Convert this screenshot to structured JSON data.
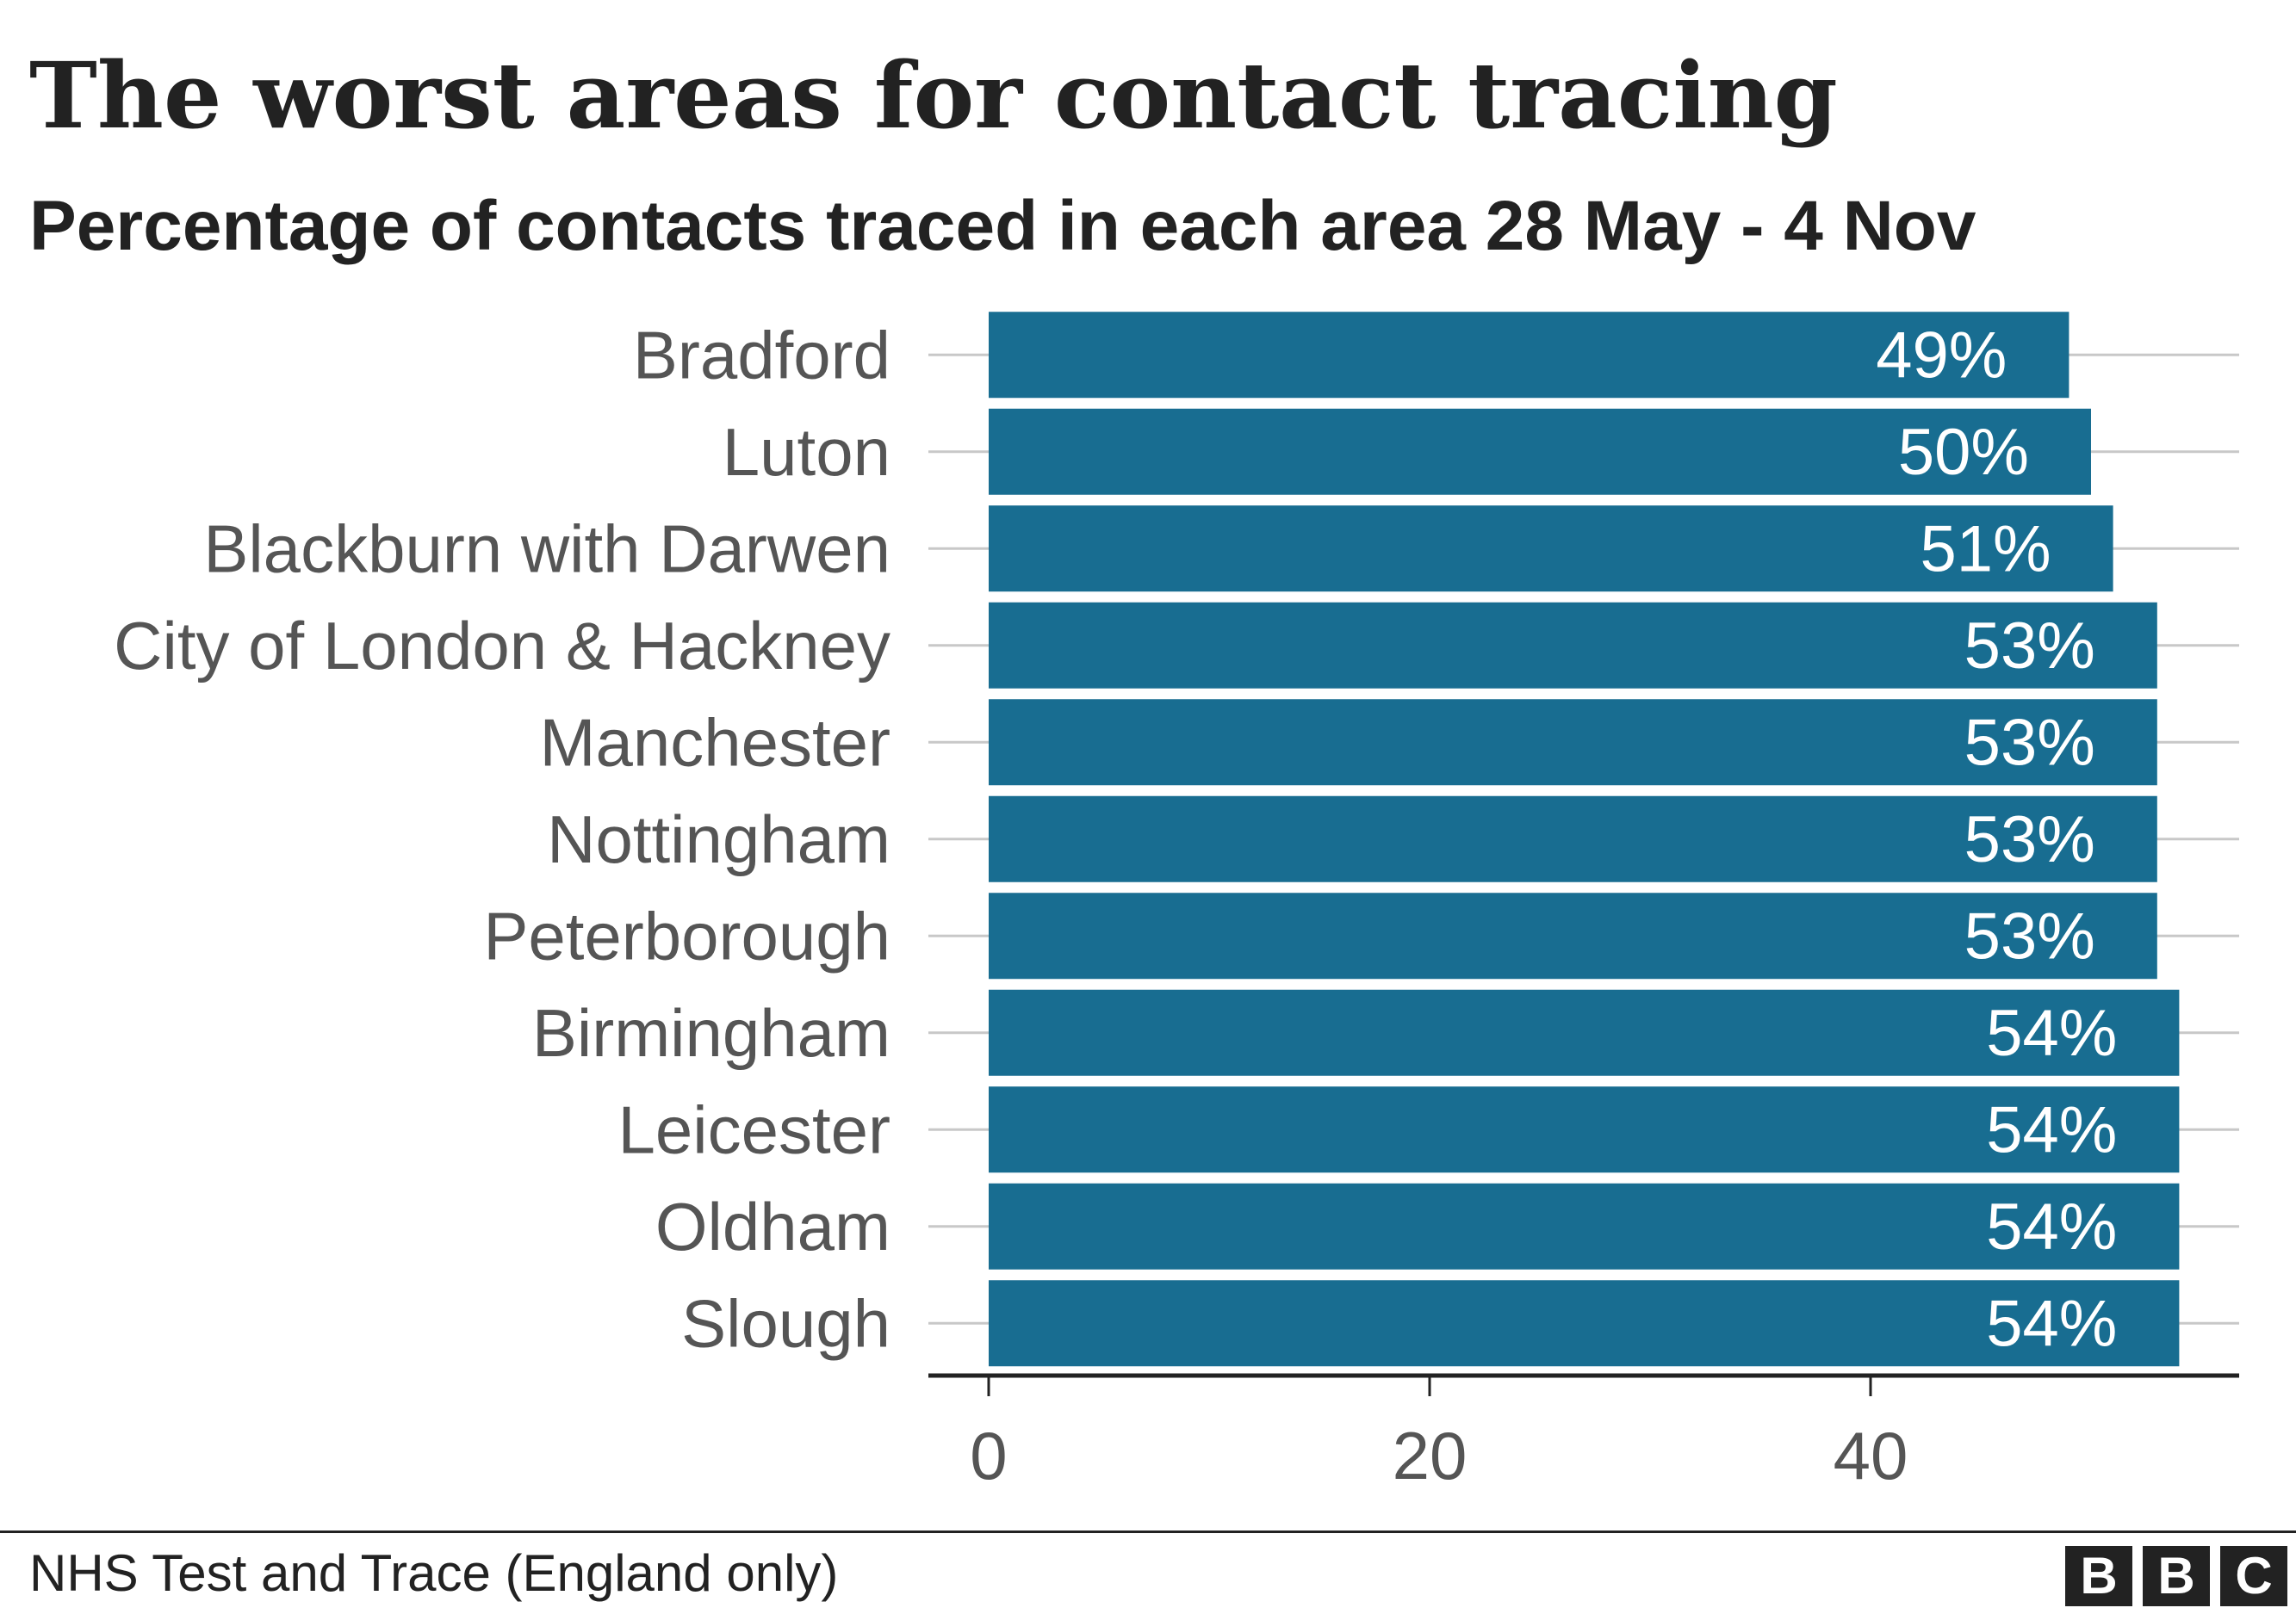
{
  "header": {
    "title": "The worst areas for contact tracing",
    "subtitle": "Percentage of contacts traced in each area 28 May - 4 Nov"
  },
  "footer": {
    "source": "NHS Test and Trace (England only)",
    "logo_letters": [
      "B",
      "B",
      "C"
    ]
  },
  "colors": {
    "bar": "#186d91",
    "bar_label": "#ffffff",
    "category_label": "#555555",
    "gridline": "#c8c8c8",
    "axis": "#222222",
    "tick_label": "#555555"
  },
  "chart_data": {
    "type": "bar",
    "orientation": "horizontal",
    "categories": [
      "Bradford",
      "Luton",
      "Blackburn with Darwen",
      "City of London & Hackney",
      "Manchester",
      "Nottingham",
      "Peterborough",
      "Birmingham",
      "Leicester",
      "Oldham",
      "Slough"
    ],
    "values": [
      49,
      50,
      51,
      53,
      53,
      53,
      53,
      54,
      54,
      54,
      54
    ],
    "data_labels": [
      "49%",
      "50%",
      "51%",
      "53%",
      "53%",
      "53%",
      "53%",
      "54%",
      "54%",
      "54%",
      "54%"
    ],
    "xticks": [
      0,
      20,
      40
    ],
    "xlim": [
      0,
      56.8
    ],
    "title": "The worst areas for contact tracing",
    "subtitle": "Percentage of contacts traced in each area 28 May - 4 Nov",
    "grid": true
  }
}
